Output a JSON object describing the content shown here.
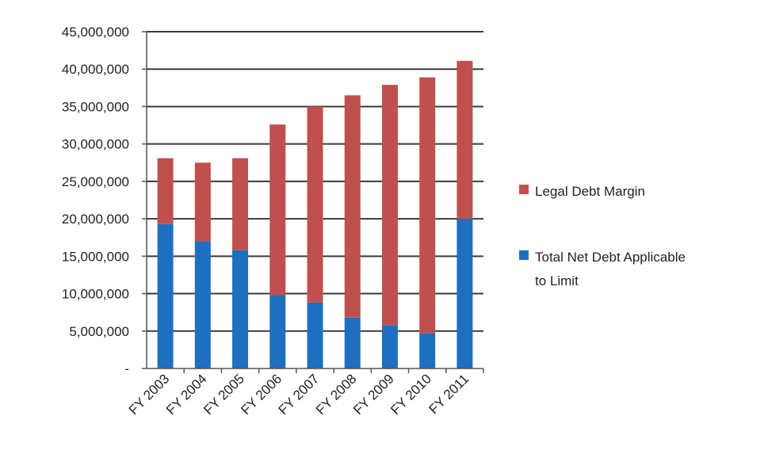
{
  "chart_data": {
    "type": "bar",
    "stacked": true,
    "title": "",
    "xlabel": "",
    "ylabel": "",
    "categories": [
      "FY 2003",
      "FY 2004",
      "FY 2005",
      "FY 2006",
      "FY 2007",
      "FY 2008",
      "FY 2009",
      "FY 2010",
      "FY 2011"
    ],
    "series": [
      {
        "name": "Total Net Debt Applicable to Limit",
        "color": "#1f6fc1",
        "values": [
          19300000,
          17000000,
          15800000,
          9800000,
          8800000,
          6800000,
          5800000,
          4700000,
          20000000
        ]
      },
      {
        "name": "Legal Debt Margin",
        "color": "#c0504d",
        "values": [
          8800000,
          10500000,
          12300000,
          22800000,
          26200000,
          29700000,
          32100000,
          34200000,
          21100000
        ]
      }
    ],
    "ylim": [
      0,
      45000000
    ],
    "yticks": [
      0,
      5000000,
      10000000,
      15000000,
      20000000,
      25000000,
      30000000,
      35000000,
      40000000,
      45000000
    ],
    "ytick_labels": [
      "-",
      "5,000,000",
      "10,000,000",
      "15,000,000",
      "20,000,000",
      "25,000,000",
      "30,000,000",
      "35,000,000",
      "40,000,000",
      "45,000,000"
    ],
    "grid": true,
    "legend": {
      "position": "right",
      "entries": [
        {
          "label": "Legal Debt Margin",
          "color": "#c0504d"
        },
        {
          "label": "Total Net Debt Applicable",
          "label_line2": "to Limit",
          "color": "#1f6fc1"
        }
      ]
    }
  }
}
